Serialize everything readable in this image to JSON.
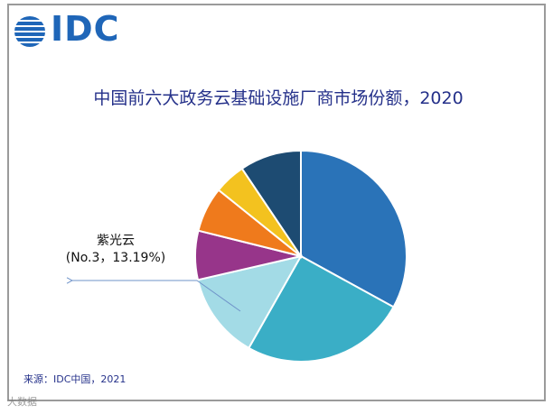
{
  "logo": {
    "text": "IDC"
  },
  "title": "中国前六大政务云基础设施厂商市场份额，2020",
  "source": "来源：IDC中国，2021",
  "watermark": "大数据",
  "chart_data": {
    "type": "pie",
    "title": "中国前六大政务云基础设施厂商市场份额，2020",
    "slices": [
      {
        "label": "",
        "value": 33.0,
        "color": "#2a73b8"
      },
      {
        "label": "",
        "value": 25.2,
        "color": "#3aaec6"
      },
      {
        "label": "紫光云",
        "value": 13.19,
        "color": "#a3dbe6"
      },
      {
        "label": "",
        "value": 7.5,
        "color": "#97358a"
      },
      {
        "label": "",
        "value": 6.9,
        "color": "#ef7a1c"
      },
      {
        "label": "",
        "value": 4.8,
        "color": "#f3c21f"
      },
      {
        "label": "",
        "value": 9.41,
        "color": "#1d4b72"
      }
    ],
    "start_angle": "12 o'clock",
    "direction": "clockwise",
    "annotation": {
      "line1": "紫光云",
      "line2": "(No.3，13.19%)"
    }
  }
}
